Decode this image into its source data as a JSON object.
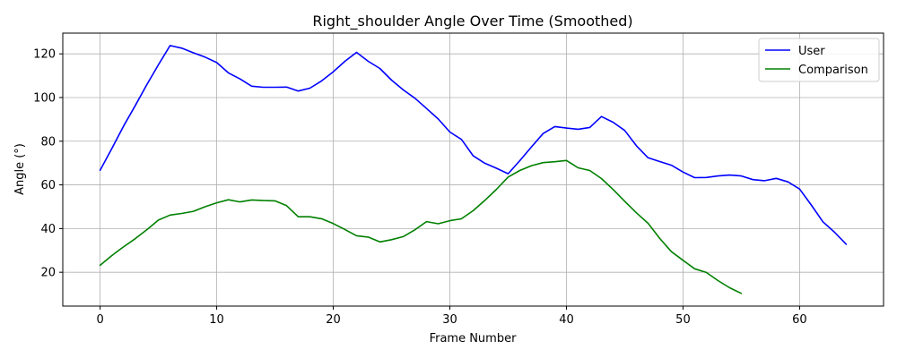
{
  "chart_data": {
    "type": "line",
    "title": "Right_shoulder Angle Over Time (Smoothed)",
    "xlabel": "Frame Number",
    "ylabel": "Angle (°)",
    "xlim": [
      -3.2,
      67.2
    ],
    "ylim": [
      4.5,
      129.5
    ],
    "xticks": [
      0,
      10,
      20,
      30,
      40,
      50,
      60
    ],
    "yticks": [
      20,
      40,
      60,
      80,
      100,
      120
    ],
    "grid": true,
    "legend_position": "top-right",
    "series": [
      {
        "name": "User",
        "color": "#0000ff",
        "x": [
          0,
          1,
          2,
          3,
          4,
          5,
          6,
          7,
          8,
          9,
          10,
          11,
          12,
          13,
          14,
          15,
          16,
          17,
          18,
          19,
          20,
          21,
          22,
          23,
          24,
          25,
          26,
          27,
          28,
          29,
          30,
          31,
          32,
          33,
          34,
          35,
          36,
          37,
          38,
          39,
          40,
          41,
          42,
          43,
          44,
          45,
          46,
          47,
          48,
          49,
          50,
          51,
          52,
          53,
          54,
          55,
          56,
          57,
          58,
          59,
          60,
          61,
          62,
          63,
          64
        ],
        "y": [
          66.7,
          76.6,
          86.8,
          96.2,
          105.8,
          115.0,
          123.8,
          122.6,
          120.5,
          118.5,
          116.0,
          111.3,
          108.5,
          105.2,
          104.7,
          104.7,
          104.8,
          103.0,
          104.3,
          107.6,
          111.8,
          116.6,
          120.7,
          116.6,
          113.3,
          108.0,
          103.5,
          99.7,
          95.0,
          90.2,
          84.2,
          80.8,
          73.3,
          69.9,
          67.6,
          65.1,
          71.1,
          77.4,
          83.5,
          86.7,
          86.0,
          85.5,
          86.3,
          91.3,
          88.7,
          84.9,
          77.9,
          72.4,
          70.7,
          69.0,
          65.9,
          63.3,
          63.4,
          64.1,
          64.5,
          64.1,
          62.4,
          61.9,
          63.0,
          61.4,
          58.1,
          50.8,
          43.1,
          38.3,
          32.8
        ]
      },
      {
        "name": "Comparison",
        "color": "#008000",
        "x": [
          0,
          1,
          2,
          3,
          4,
          5,
          6,
          7,
          8,
          9,
          10,
          11,
          12,
          13,
          14,
          15,
          16,
          17,
          18,
          19,
          20,
          21,
          22,
          23,
          24,
          25,
          26,
          27,
          28,
          29,
          30,
          31,
          32,
          33,
          34,
          35,
          36,
          37,
          38,
          39,
          40,
          41,
          42,
          43,
          44,
          45,
          46,
          47,
          48,
          49,
          50,
          51,
          52,
          53,
          54,
          55
        ],
        "y": [
          23.2,
          27.6,
          31.6,
          35.3,
          39.4,
          43.9,
          46.2,
          46.9,
          47.9,
          50.0,
          51.8,
          53.2,
          52.2,
          53.1,
          52.8,
          52.7,
          50.5,
          45.4,
          45.4,
          44.5,
          42.3,
          39.6,
          36.7,
          36.1,
          33.9,
          34.9,
          36.3,
          39.4,
          43.2,
          42.2,
          43.6,
          44.5,
          48.2,
          52.9,
          58.0,
          63.6,
          66.6,
          68.8,
          70.2,
          70.6,
          71.2,
          67.8,
          66.6,
          62.9,
          57.9,
          52.5,
          47.2,
          42.4,
          35.5,
          29.4,
          25.5,
          21.6,
          19.9,
          16.2,
          12.9,
          10.3
        ]
      }
    ]
  }
}
